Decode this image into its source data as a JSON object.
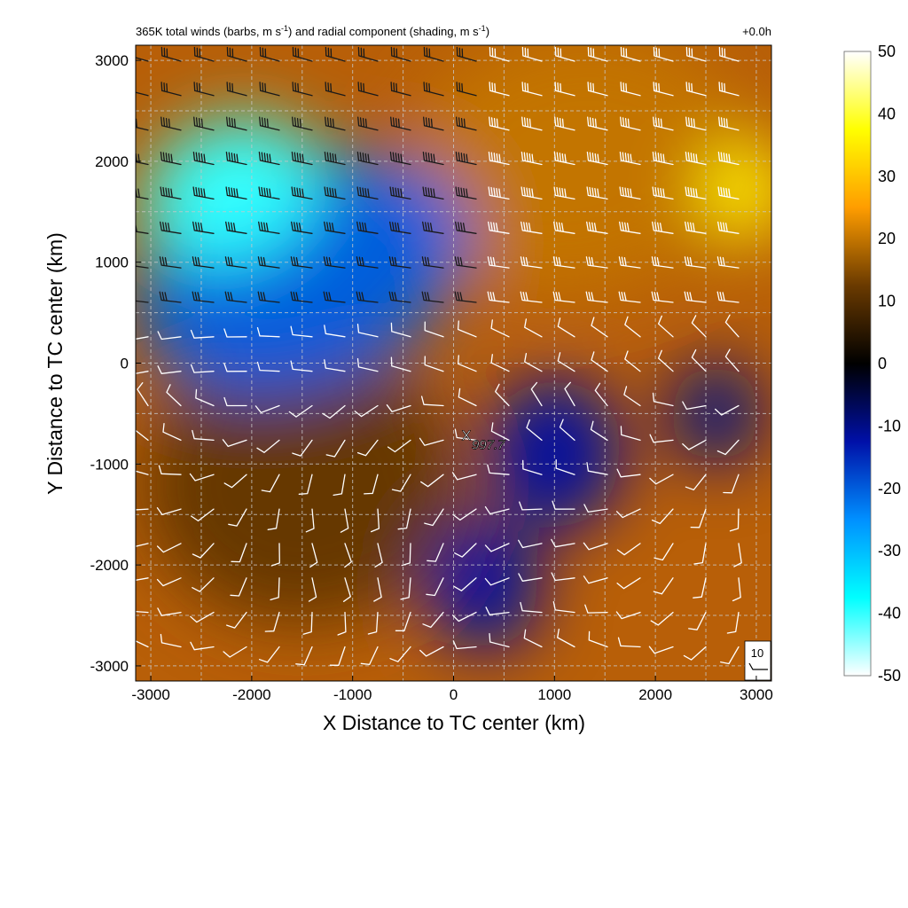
{
  "chart_data": {
    "type": "heatmap",
    "title": {
      "main": "365K total winds (barbs, m s",
      "sup1": "-1",
      "mid": ") and radial component (shading, m s",
      "sup2": "-1",
      "end": ")"
    },
    "time_label": "+0.0h",
    "xlabel": "X Distance to TC center (km)",
    "ylabel": "Y Distance to TC center (km)",
    "xlim": [
      -3150,
      3150
    ],
    "ylim": [
      -3150,
      3150
    ],
    "xticks": [
      -3000,
      -2000,
      -1000,
      0,
      1000,
      2000,
      3000
    ],
    "yticks": [
      -3000,
      -2000,
      -1000,
      0,
      1000,
      2000,
      3000
    ],
    "grid": true,
    "colorbar": {
      "range": [
        -50,
        50
      ],
      "ticks": [
        50,
        40,
        30,
        20,
        10,
        0,
        -10,
        -20,
        -30,
        -40,
        -50
      ],
      "colors": [
        "#ffffff",
        "#ffff00",
        "#ff9d00",
        "#6a3a00",
        "#000000",
        "#0010a8",
        "#0090ff",
        "#00ffff",
        "#ffffff"
      ]
    },
    "center_marker": {
      "label": "997.7",
      "x": 250,
      "y": -800
    },
    "reference_barb": {
      "label": "10",
      "speed": 10
    },
    "shading_regions": [
      {
        "name": "strong inflow NW",
        "x": -2200,
        "y": 1700,
        "value": -40
      },
      {
        "name": "inflow W band",
        "x": -1500,
        "y": 900,
        "value": -20
      },
      {
        "name": "outflow NE",
        "x": 1200,
        "y": 2000,
        "value": 20
      },
      {
        "name": "strong outflow E edge",
        "x": 2900,
        "y": 1700,
        "value": 35
      },
      {
        "name": "outflow S/W",
        "x": -1500,
        "y": -1200,
        "value": 12
      },
      {
        "name": "inflow near center",
        "x": 1000,
        "y": -900,
        "value": -12
      },
      {
        "name": "inflow S",
        "x": 300,
        "y": -2200,
        "value": -12
      },
      {
        "name": "inflow E",
        "x": 2600,
        "y": -500,
        "value": -10
      }
    ]
  }
}
